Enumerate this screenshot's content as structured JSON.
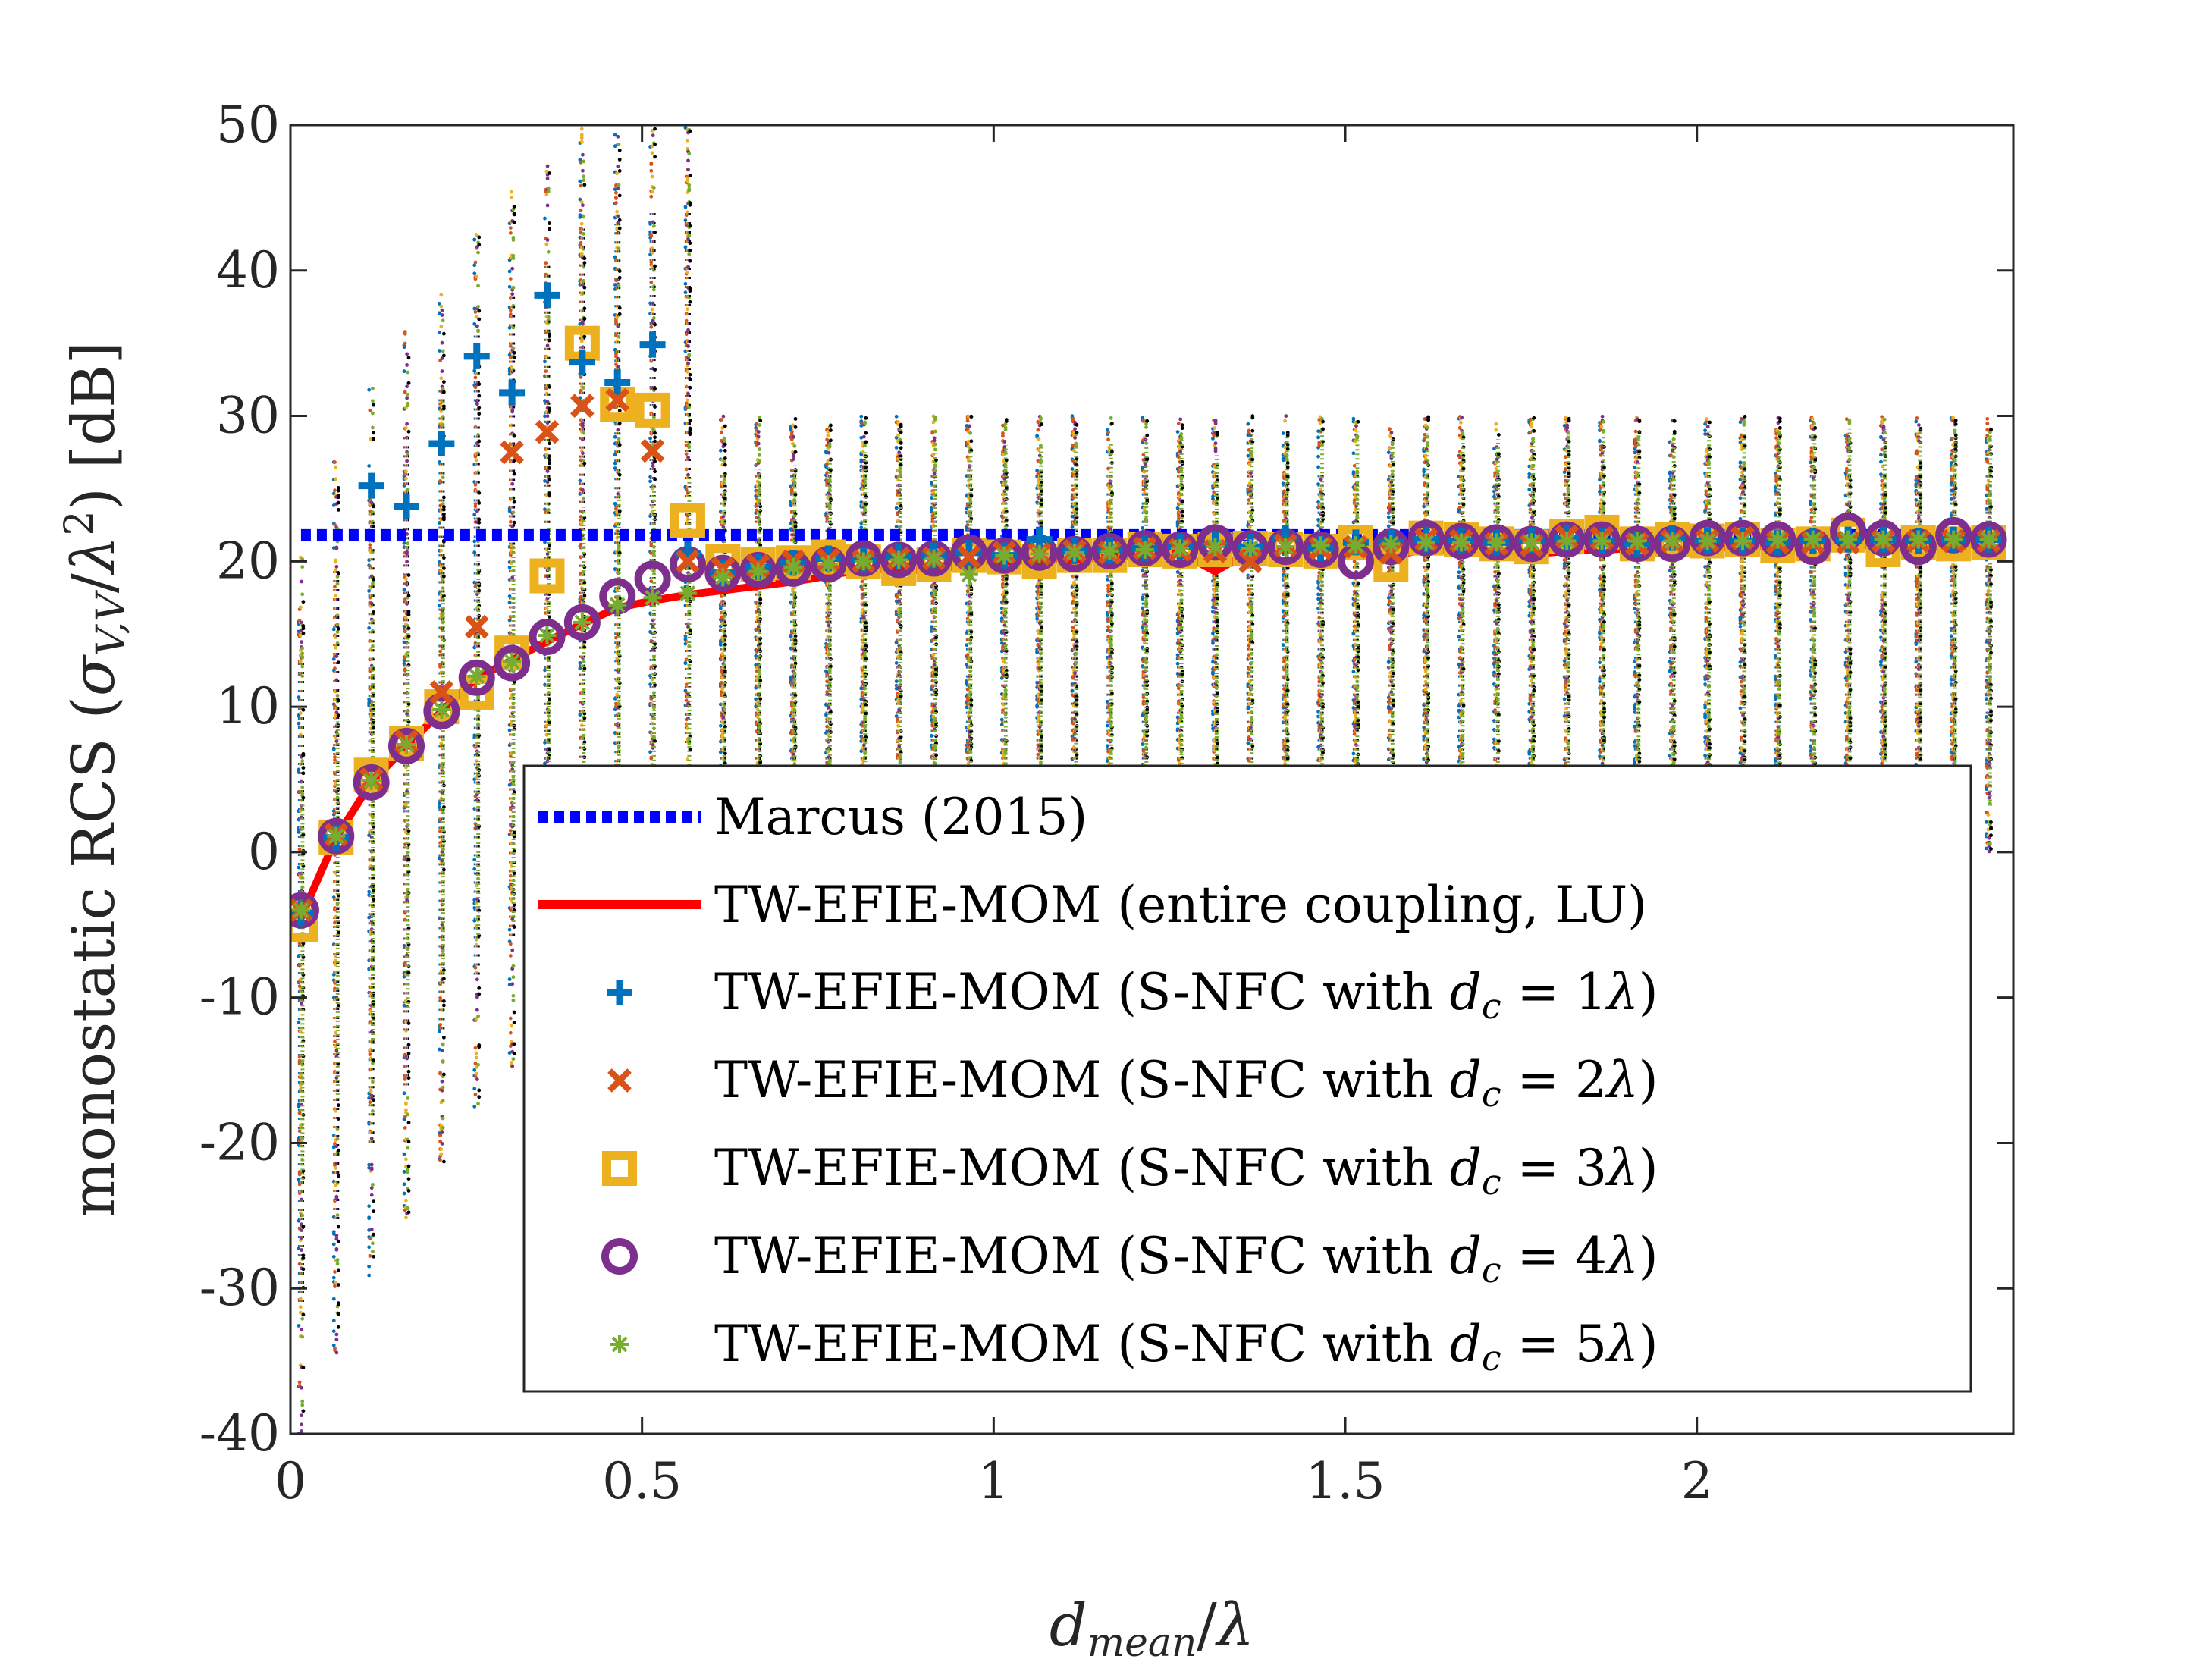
{
  "chart_data": {
    "type": "scatter",
    "xlabel": "d_mean/λ",
    "ylabel": "monostatic RCS (σ_V,V/λ²) [dB]",
    "xlim": [
      0,
      2.45
    ],
    "ylim": [
      -40,
      50
    ],
    "x_ticks": [
      0,
      0.5,
      1,
      1.5,
      2
    ],
    "x_tick_labels": [
      "0",
      "0.5",
      "1",
      "1.5",
      "2"
    ],
    "y_ticks": [
      50,
      40,
      30,
      20,
      10,
      0,
      -10,
      -20,
      -30,
      -40
    ],
    "y_tick_labels": [
      "50",
      "40",
      "30",
      "20",
      "10",
      "0",
      "-10",
      "-20",
      "-30",
      "-40"
    ],
    "legend_position": "bottom-right",
    "x": [
      0.015,
      0.065,
      0.115,
      0.165,
      0.215,
      0.265,
      0.315,
      0.365,
      0.415,
      0.465,
      0.515,
      0.565,
      0.615,
      0.665,
      0.715,
      0.765,
      0.815,
      0.865,
      0.915,
      0.965,
      1.015,
      1.065,
      1.115,
      1.165,
      1.215,
      1.265,
      1.315,
      1.365,
      1.415,
      1.465,
      1.515,
      1.565,
      1.615,
      1.665,
      1.715,
      1.765,
      1.815,
      1.865,
      1.915,
      1.965,
      2.015,
      2.065,
      2.115,
      2.165,
      2.215,
      2.265,
      2.315,
      2.365,
      2.415
    ],
    "series": [
      {
        "name": "Marcus (2015)",
        "style": "dotted-line",
        "color": "#0000ff",
        "y_constant": 21.8
      },
      {
        "name": "TW-EFIE-MOM (entire coupling, LU)",
        "style": "line",
        "color": "#ff0000",
        "values": [
          -4.5,
          1.0,
          4.8,
          7.3,
          9.7,
          12.0,
          13.2,
          14.5,
          15.7,
          16.8,
          17.3,
          17.7,
          18.0,
          18.3,
          18.6,
          19.0,
          19.5,
          19.4,
          19.4,
          19.8,
          20.0,
          20.1,
          20.1,
          20.3,
          20.4,
          20.6,
          19.3,
          20.7,
          20.8,
          20.9,
          20.9,
          20.4,
          20.8,
          20.7,
          20.4,
          20.5,
          20.7,
          20.8,
          20.9,
          20.7,
          20.9,
          21.0,
          21.0,
          21.0,
          21.1,
          21.1,
          21.1,
          21.1,
          21.2
        ]
      },
      {
        "name": "TW-EFIE-MOM (S-NFC with d_c = 1λ)",
        "marker": "plus",
        "color": "#0072bd",
        "values": [
          -4.2,
          1.0,
          25.2,
          23.8,
          28.1,
          34.1,
          31.6,
          38.3,
          33.7,
          32.3,
          34.9,
          20.5,
          19.2,
          19.6,
          19.9,
          20.2,
          20.1,
          20.3,
          20.4,
          20.6,
          20.4,
          21.5,
          20.7,
          20.8,
          20.9,
          21.0,
          21.2,
          21.0,
          21.6,
          20.9,
          21.3,
          21.3,
          21.5,
          21.4,
          21.3,
          21.4,
          21.6,
          21.4,
          21.2,
          21.6,
          21.4,
          21.4,
          21.3,
          21.4,
          21.5,
          21.5,
          21.4,
          21.5,
          21.5
        ]
      },
      {
        "name": "TW-EFIE-MOM (S-NFC with d_c = 2λ)",
        "marker": "x",
        "color": "#d95319",
        "values": [
          -4.0,
          1.2,
          5.0,
          7.6,
          11.0,
          15.5,
          27.5,
          28.9,
          30.7,
          31.1,
          27.6,
          20.0,
          19.5,
          19.7,
          20.0,
          20.1,
          20.0,
          20.2,
          20.2,
          20.3,
          20.6,
          20.5,
          20.7,
          20.6,
          20.9,
          20.8,
          20.7,
          20.0,
          21.1,
          20.9,
          21.0,
          20.6,
          21.5,
          21.4,
          21.2,
          21.1,
          21.7,
          21.6,
          21.2,
          21.4,
          21.4,
          21.6,
          21.3,
          21.3,
          21.3,
          21.4,
          21.4,
          21.4,
          21.4
        ]
      },
      {
        "name": "TW-EFIE-MOM (S-NFC with d_c = 3λ)",
        "marker": "square",
        "color": "#edb120",
        "values": [
          -5.0,
          1.0,
          5.3,
          7.5,
          10.0,
          11.0,
          13.7,
          19.0,
          35.0,
          30.8,
          30.4,
          22.8,
          20.0,
          19.8,
          19.9,
          20.3,
          20.0,
          19.5,
          19.8,
          20.4,
          20.3,
          20.0,
          20.4,
          20.4,
          20.8,
          20.7,
          20.8,
          20.9,
          20.8,
          20.7,
          21.3,
          19.8,
          21.6,
          21.5,
          21.2,
          21.0,
          21.7,
          22.0,
          21.2,
          21.5,
          21.4,
          21.5,
          21.1,
          21.2,
          21.8,
          20.8,
          21.3,
          21.2,
          21.3
        ]
      },
      {
        "name": "TW-EFIE-MOM (S-NFC with d_c = 4λ)",
        "marker": "circle",
        "color": "#7e2f8e",
        "values": [
          -4.0,
          1.1,
          4.8,
          7.3,
          9.7,
          12.0,
          13.0,
          14.8,
          15.8,
          17.6,
          18.8,
          19.8,
          19.2,
          19.4,
          19.5,
          19.8,
          20.2,
          20.1,
          20.2,
          20.6,
          20.4,
          20.6,
          20.5,
          20.7,
          20.9,
          20.8,
          21.3,
          20.9,
          21.0,
          20.8,
          20.0,
          21.0,
          21.6,
          21.4,
          21.3,
          21.2,
          21.5,
          21.5,
          21.2,
          21.2,
          21.6,
          21.6,
          21.5,
          21.0,
          22.1,
          21.6,
          21.0,
          21.8,
          21.5
        ]
      },
      {
        "name": "TW-EFIE-MOM (S-NFC with d_c = 5λ)",
        "marker": "asterisk",
        "color": "#77ac30",
        "values": [
          -4.0,
          1.1,
          4.9,
          7.4,
          9.8,
          12.1,
          13.1,
          14.9,
          15.8,
          17.0,
          17.5,
          17.8,
          18.9,
          19.3,
          19.6,
          19.8,
          20.0,
          20.1,
          20.2,
          19.1,
          20.4,
          20.5,
          20.6,
          20.7,
          20.8,
          20.9,
          21.0,
          20.9,
          21.0,
          21.1,
          21.1,
          21.2,
          21.3,
          21.3,
          21.3,
          21.3,
          21.4,
          21.4,
          21.4,
          21.4,
          21.4,
          21.4,
          21.5,
          21.5,
          21.5,
          21.5,
          21.5,
          21.5,
          21.5
        ]
      }
    ],
    "spread_note": "vertical bands of small dots at each x position, ranging roughly from about 0 to 30 dB (wider at small x)"
  },
  "legend": {
    "items": [
      "Marcus (2015)",
      "TW-EFIE-MOM (entire coupling, LU)",
      "TW-EFIE-MOM (S-NFC with ",
      "TW-EFIE-MOM (S-NFC with ",
      "TW-EFIE-MOM (S-NFC with ",
      "TW-EFIE-MOM (S-NFC with ",
      "TW-EFIE-MOM (S-NFC with "
    ],
    "dc_values": [
      "1",
      "2",
      "3",
      "4",
      "5"
    ]
  }
}
